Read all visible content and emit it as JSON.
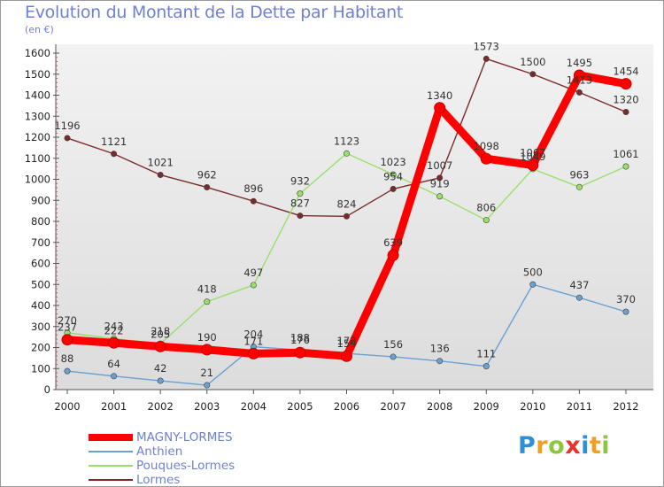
{
  "header": {
    "title": "Evolution du Montant de la Dette par Habitant",
    "subtitle": "(en €)"
  },
  "logo": {
    "letters": [
      "P",
      "r",
      "o",
      "x",
      "i",
      "t",
      "i"
    ],
    "colors": [
      "#2f8fd6",
      "#f0a020",
      "#8cc63f",
      "#e8332a",
      "#2f8fd6",
      "#f0a020",
      "#8cc63f"
    ]
  },
  "chart_data": {
    "type": "line",
    "title": "Evolution du Montant de la Dette par Habitant",
    "subtitle": "(en €)",
    "x": [
      "2000",
      "2001",
      "2002",
      "2003",
      "2004",
      "2005",
      "2006",
      "2007",
      "2008",
      "2009",
      "2010",
      "2011",
      "2012"
    ],
    "ylim": [
      0,
      1600
    ],
    "yticks": [
      0,
      100,
      200,
      300,
      400,
      500,
      600,
      700,
      800,
      900,
      1000,
      1100,
      1200,
      1300,
      1400,
      1500,
      1600
    ],
    "grid": false,
    "legend_position": "bottom-left",
    "series": [
      {
        "name": "MAGNY-LORMES",
        "color": "#ff0000",
        "values": [
          237,
          222,
          205,
          190,
          171,
          176,
          159,
          639,
          1340,
          1098,
          1067,
          1495,
          1454
        ]
      },
      {
        "name": "Anthien",
        "color": "#6aa0d2",
        "values": [
          88,
          64,
          42,
          21,
          204,
          188,
          172,
          156,
          136,
          111,
          500,
          437,
          370
        ]
      },
      {
        "name": "Pouques-Lormes",
        "color": "#99e06a",
        "values": [
          270,
          243,
          218,
          418,
          497,
          932,
          1123,
          1023,
          919,
          806,
          1049,
          963,
          1061
        ]
      },
      {
        "name": "Lormes",
        "color": "#7a2a2a",
        "values": [
          1196,
          1121,
          1021,
          962,
          896,
          827,
          824,
          954,
          1007,
          1573,
          1500,
          1413,
          1320
        ]
      }
    ]
  }
}
